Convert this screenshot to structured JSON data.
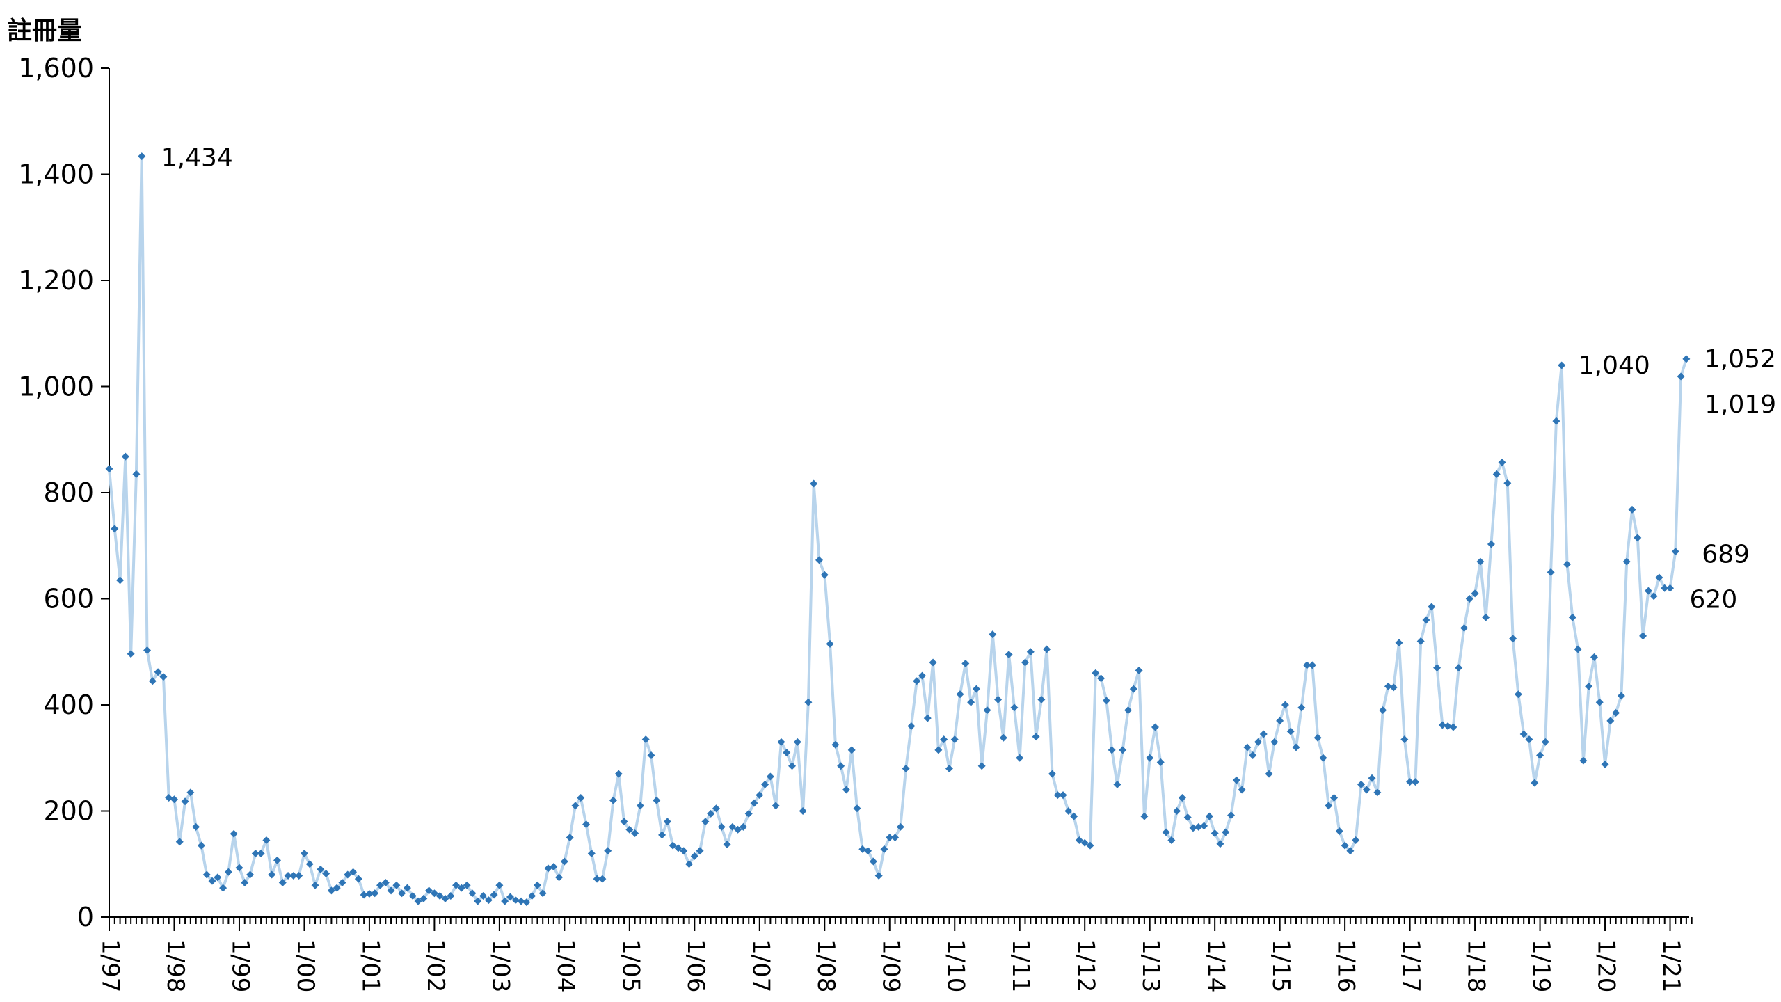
{
  "chart_data": {
    "type": "line",
    "ylabel": "註冊量",
    "ylim": [
      0,
      1600
    ],
    "yticks": [
      0,
      200,
      400,
      600,
      800,
      1000,
      1200,
      1400,
      1600
    ],
    "ytick_labels": [
      "0",
      "200",
      "400",
      "600",
      "800",
      "1,000",
      "1,200",
      "1,400",
      "1,600"
    ],
    "xtick_labels": [
      "1/97",
      "1/98",
      "1/99",
      "1/00",
      "1/01",
      "1/02",
      "1/03",
      "1/04",
      "1/05",
      "1/06",
      "1/07",
      "1/08",
      "1/09",
      "1/10",
      "1/11",
      "1/12",
      "1/13",
      "1/14",
      "1/15",
      "1/16",
      "1/17",
      "1/18",
      "1/19",
      "1/20",
      "1/21"
    ],
    "x_start": "1997-01",
    "x_end": "2021-04",
    "grid": false,
    "legend": "none",
    "colors": {
      "line": "#b8d4ec",
      "marker": "#2e75b6"
    },
    "values": [
      845,
      732,
      635,
      868,
      496,
      835,
      1434,
      503,
      445,
      462,
      453,
      225,
      222,
      142,
      218,
      235,
      170,
      135,
      80,
      68,
      75,
      55,
      85,
      157,
      93,
      65,
      80,
      120,
      120,
      145,
      80,
      107,
      65,
      78,
      78,
      78,
      120,
      100,
      60,
      90,
      82,
      50,
      55,
      65,
      80,
      85,
      72,
      42,
      44,
      45,
      60,
      65,
      50,
      60,
      45,
      55,
      40,
      30,
      35,
      50,
      45,
      40,
      35,
      40,
      60,
      55,
      60,
      45,
      30,
      40,
      32,
      42,
      60,
      30,
      38,
      32,
      30,
      28,
      40,
      60,
      45,
      92,
      95,
      75,
      105,
      150,
      210,
      225,
      175,
      120,
      72,
      72,
      125,
      220,
      270,
      180,
      165,
      158,
      210,
      335,
      305,
      220,
      155,
      180,
      135,
      130,
      125,
      100,
      115,
      125,
      180,
      195,
      205,
      170,
      137,
      170,
      165,
      170,
      195,
      215,
      230,
      250,
      265,
      210,
      330,
      310,
      285,
      330,
      200,
      405,
      817,
      673,
      645,
      515,
      325,
      285,
      240,
      315,
      205,
      128,
      125,
      105,
      78,
      128,
      150,
      150,
      170,
      280,
      360,
      445,
      455,
      375,
      480,
      315,
      335,
      280,
      335,
      420,
      478,
      405,
      430,
      285,
      390,
      533,
      410,
      338,
      495,
      395,
      300,
      480,
      500,
      340,
      410,
      505,
      270,
      230,
      230,
      200,
      190,
      145,
      140,
      135,
      460,
      450,
      408,
      315,
      250,
      315,
      390,
      430,
      465,
      190,
      300,
      358,
      292,
      160,
      145,
      200,
      225,
      188,
      168,
      170,
      172,
      190,
      158,
      138,
      160,
      192,
      258,
      240,
      320,
      305,
      330,
      345,
      270,
      330,
      370,
      400,
      350,
      320,
      395,
      475,
      475,
      338,
      300,
      210,
      225,
      162,
      135,
      125,
      145,
      250,
      240,
      262,
      235,
      390,
      435,
      433,
      517,
      335,
      255,
      255,
      520,
      560,
      585,
      470,
      362,
      360,
      358,
      470,
      545,
      600,
      610,
      670,
      565,
      703,
      835,
      857,
      818,
      525,
      420,
      345,
      335,
      253,
      305,
      330,
      650,
      935,
      1040,
      665,
      565,
      505,
      295,
      435,
      490,
      405,
      288,
      370,
      385,
      417,
      670,
      768,
      715,
      530,
      615,
      605,
      640,
      620,
      620,
      689,
      1019,
      1052
    ],
    "annotations": [
      {
        "label": "1,434",
        "value": 1434,
        "date": "1997-07"
      },
      {
        "label": "1,040",
        "value": 1040,
        "date": "2019-05"
      },
      {
        "label": "1,052",
        "value": 1052,
        "date": "2021-04"
      },
      {
        "label": "1,019",
        "value": 1019,
        "date": "2021-03"
      },
      {
        "label": "689",
        "value": 689,
        "date": "2021-02"
      },
      {
        "label": "620",
        "value": 620,
        "date": "2021-01"
      }
    ]
  }
}
